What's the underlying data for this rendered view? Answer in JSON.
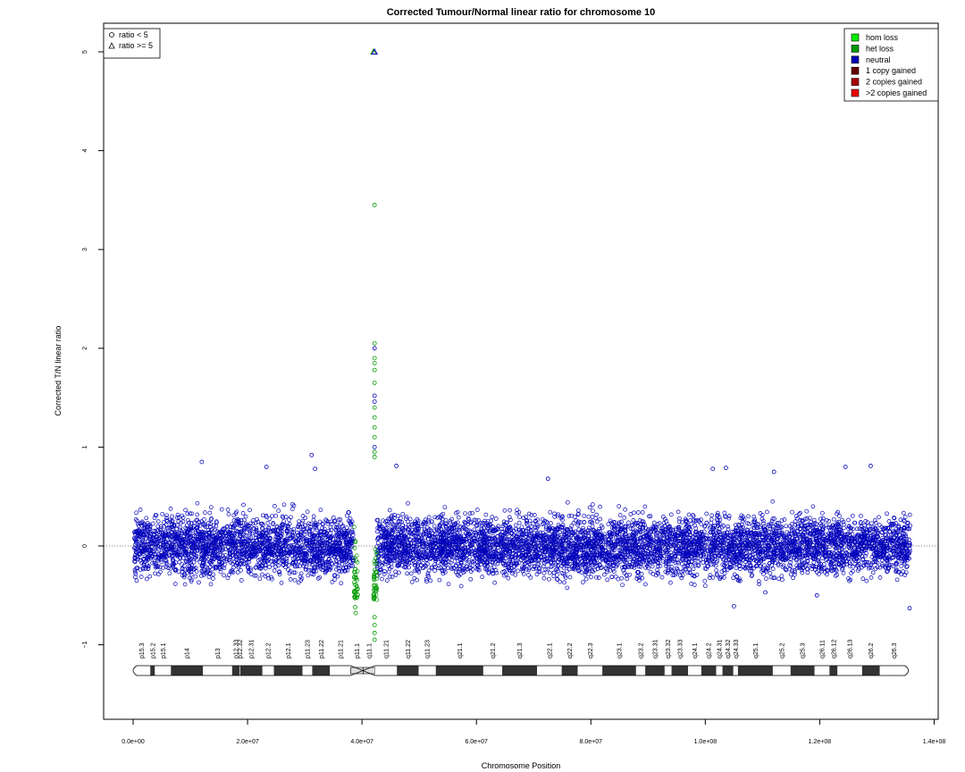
{
  "chart_data": {
    "type": "scatter",
    "title": "Corrected Tumour/Normal linear ratio for chromosome  10",
    "xlabel": "Chromosome Position",
    "ylabel": "Corrected T/N linear ratio",
    "xlim": [
      0,
      140000000
    ],
    "ylim": [
      -1.8,
      5.25
    ],
    "x_ticks": [
      0,
      20000000,
      40000000,
      60000000,
      80000000,
      100000000,
      120000000,
      140000000
    ],
    "x_tick_labels": [
      "0.0e+00",
      "2.0e+07",
      "4.0e+07",
      "6.0e+07",
      "8.0e+07",
      "1.0e+08",
      "1.2e+08",
      "1.4e+08"
    ],
    "y_ticks": [
      -1,
      0,
      1,
      2,
      3,
      4,
      5
    ],
    "y_tick_labels": [
      "−1",
      "0",
      "1",
      "2",
      "3",
      "4",
      "5"
    ],
    "reference_line_y": 0,
    "shape_legend": [
      {
        "label": "ratio < 5",
        "shape": "circle"
      },
      {
        "label": "ratio >= 5",
        "shape": "triangle"
      }
    ],
    "legend": [
      {
        "label": "hom loss",
        "color": "#00ee00"
      },
      {
        "label": "het loss",
        "color": "#009900"
      },
      {
        "label": "neutral",
        "color": "#0000bb"
      },
      {
        "label": "1 copy gained",
        "color": "#660000"
      },
      {
        "label": "2 copies gained",
        "color": "#aa0000"
      },
      {
        "label": ">2 copies gained",
        "color": "#ee0000"
      }
    ],
    "series": [
      {
        "name": "neutral",
        "color": "#0000bb",
        "segments": [
          [
            200000,
            38500000
          ],
          [
            42600000,
            135800000
          ]
        ],
        "center": 0,
        "spread": 0.35
      },
      {
        "name": "het loss",
        "color": "#009900",
        "segments": [
          [
            38600000,
            39300000
          ],
          [
            42000000,
            42600000
          ]
        ],
        "center": -0.3,
        "spread": 0.4
      }
    ],
    "outliers": [
      {
        "x": 12000000,
        "y": 0.85,
        "series": "neutral"
      },
      {
        "x": 23300000,
        "y": 0.8,
        "series": "neutral"
      },
      {
        "x": 31200000,
        "y": 0.92,
        "series": "neutral"
      },
      {
        "x": 31800000,
        "y": 0.78,
        "series": "neutral"
      },
      {
        "x": 46000000,
        "y": 0.81,
        "series": "neutral"
      },
      {
        "x": 72500000,
        "y": 0.68,
        "series": "neutral"
      },
      {
        "x": 101300000,
        "y": 0.78,
        "series": "neutral"
      },
      {
        "x": 103600000,
        "y": 0.79,
        "series": "neutral"
      },
      {
        "x": 112000000,
        "y": 0.75,
        "series": "neutral"
      },
      {
        "x": 124500000,
        "y": 0.8,
        "series": "neutral"
      },
      {
        "x": 128900000,
        "y": 0.81,
        "series": "neutral"
      },
      {
        "x": 105000000,
        "y": -0.61,
        "series": "neutral"
      },
      {
        "x": 110500000,
        "y": -0.47,
        "series": "neutral"
      },
      {
        "x": 119500000,
        "y": -0.5,
        "series": "neutral"
      },
      {
        "x": 135700000,
        "y": -0.63,
        "series": "neutral"
      },
      {
        "x": 42200000,
        "y": 3.45,
        "series": "het loss"
      },
      {
        "x": 42200000,
        "y": 2.05,
        "series": "het loss"
      },
      {
        "x": 42200000,
        "y": 2.0,
        "series": "neutral"
      },
      {
        "x": 42200000,
        "y": 1.9,
        "series": "het loss"
      },
      {
        "x": 42200000,
        "y": 1.85,
        "series": "het loss"
      },
      {
        "x": 42200000,
        "y": 1.78,
        "series": "het loss"
      },
      {
        "x": 42200000,
        "y": 1.65,
        "series": "het loss"
      },
      {
        "x": 42200000,
        "y": 1.52,
        "series": "neutral"
      },
      {
        "x": 42200000,
        "y": 1.46,
        "series": "neutral"
      },
      {
        "x": 42200000,
        "y": 1.4,
        "series": "het loss"
      },
      {
        "x": 42200000,
        "y": 1.3,
        "series": "het loss"
      },
      {
        "x": 42200000,
        "y": 1.2,
        "series": "het loss"
      },
      {
        "x": 42200000,
        "y": 1.1,
        "series": "het loss"
      },
      {
        "x": 42200000,
        "y": 1.0,
        "series": "neutral"
      },
      {
        "x": 42200000,
        "y": 0.95,
        "series": "het loss"
      },
      {
        "x": 42200000,
        "y": 0.9,
        "series": "het loss"
      },
      {
        "x": 42200000,
        "y": -0.72,
        "series": "het loss"
      },
      {
        "x": 42200000,
        "y": -0.8,
        "series": "het loss"
      },
      {
        "x": 42200000,
        "y": -0.88,
        "series": "het loss"
      },
      {
        "x": 42200000,
        "y": -0.95,
        "series": "het loss"
      },
      {
        "x": 38900000,
        "y": -0.68,
        "series": "het loss"
      },
      {
        "x": 38800000,
        "y": -0.62,
        "series": "het loss"
      }
    ],
    "saturated_points": [
      {
        "x": 42000000,
        "y": 5,
        "series": "het loss"
      },
      {
        "x": 42200000,
        "y": 5,
        "series": "neutral"
      }
    ],
    "ideogram": {
      "bands": [
        {
          "name": "p15.3",
          "start": 0,
          "end": 3000000,
          "stain": "gneg"
        },
        {
          "name": "p15.2",
          "start": 3000000,
          "end": 3800000,
          "stain": "gpos"
        },
        {
          "name": "p15.1",
          "start": 3800000,
          "end": 6600000,
          "stain": "gneg"
        },
        {
          "name": "p14",
          "start": 6600000,
          "end": 12200000,
          "stain": "gpos"
        },
        {
          "name": "p13",
          "start": 12200000,
          "end": 17300000,
          "stain": "gneg"
        },
        {
          "name": "p12.33",
          "start": 17300000,
          "end": 18600000,
          "stain": "gpos"
        },
        {
          "name": "p12.32",
          "start": 18600000,
          "end": 18700000,
          "stain": "gneg"
        },
        {
          "name": "p12.31",
          "start": 18700000,
          "end": 22600000,
          "stain": "gpos"
        },
        {
          "name": "p12.2",
          "start": 22600000,
          "end": 24600000,
          "stain": "gneg"
        },
        {
          "name": "p12.1",
          "start": 24600000,
          "end": 29600000,
          "stain": "gpos"
        },
        {
          "name": "p11.23",
          "start": 29600000,
          "end": 31300000,
          "stain": "gneg"
        },
        {
          "name": "p11.22",
          "start": 31300000,
          "end": 34400000,
          "stain": "gpos"
        },
        {
          "name": "p11.21",
          "start": 34400000,
          "end": 38000000,
          "stain": "gneg"
        },
        {
          "name": "p11.1",
          "start": 38000000,
          "end": 40200000,
          "stain": "acen"
        },
        {
          "name": "q11.1",
          "start": 40200000,
          "end": 42300000,
          "stain": "acen"
        },
        {
          "name": "q11.21",
          "start": 42300000,
          "end": 46100000,
          "stain": "gneg"
        },
        {
          "name": "q11.22",
          "start": 46100000,
          "end": 49900000,
          "stain": "gpos"
        },
        {
          "name": "q11.23",
          "start": 49900000,
          "end": 52900000,
          "stain": "gneg"
        },
        {
          "name": "q21.1",
          "start": 52900000,
          "end": 61200000,
          "stain": "gpos"
        },
        {
          "name": "q21.2",
          "start": 61200000,
          "end": 64500000,
          "stain": "gneg"
        },
        {
          "name": "q21.3",
          "start": 64500000,
          "end": 70600000,
          "stain": "gpos"
        },
        {
          "name": "q22.1",
          "start": 70600000,
          "end": 74900000,
          "stain": "gneg"
        },
        {
          "name": "q22.2",
          "start": 74900000,
          "end": 77700000,
          "stain": "gpos"
        },
        {
          "name": "q22.3",
          "start": 77700000,
          "end": 82000000,
          "stain": "gneg"
        },
        {
          "name": "q23.1",
          "start": 82000000,
          "end": 87900000,
          "stain": "gpos"
        },
        {
          "name": "q23.2",
          "start": 87900000,
          "end": 89500000,
          "stain": "gneg"
        },
        {
          "name": "q23.31",
          "start": 89500000,
          "end": 92900000,
          "stain": "gpos"
        },
        {
          "name": "q23.32",
          "start": 92900000,
          "end": 94100000,
          "stain": "gneg"
        },
        {
          "name": "q23.33",
          "start": 94100000,
          "end": 97000000,
          "stain": "gpos"
        },
        {
          "name": "q24.1",
          "start": 97000000,
          "end": 99300000,
          "stain": "gneg"
        },
        {
          "name": "q24.2",
          "start": 99300000,
          "end": 101900000,
          "stain": "gpos"
        },
        {
          "name": "q24.31",
          "start": 101900000,
          "end": 103000000,
          "stain": "gneg"
        },
        {
          "name": "q24.32",
          "start": 103000000,
          "end": 104900000,
          "stain": "gpos"
        },
        {
          "name": "q24.33",
          "start": 104900000,
          "end": 105700000,
          "stain": "gneg"
        },
        {
          "name": "q25.1",
          "start": 105700000,
          "end": 111800000,
          "stain": "gpos"
        },
        {
          "name": "q25.2",
          "start": 111800000,
          "end": 114900000,
          "stain": "gneg"
        },
        {
          "name": "q25.3",
          "start": 114900000,
          "end": 119100000,
          "stain": "gpos"
        },
        {
          "name": "q26.11",
          "start": 119100000,
          "end": 121700000,
          "stain": "gneg"
        },
        {
          "name": "q26.12",
          "start": 121700000,
          "end": 123100000,
          "stain": "gpos"
        },
        {
          "name": "q26.13",
          "start": 123100000,
          "end": 127400000,
          "stain": "gneg"
        },
        {
          "name": "q26.2",
          "start": 127400000,
          "end": 130500000,
          "stain": "gpos"
        },
        {
          "name": "q26.3",
          "start": 130500000,
          "end": 135500000,
          "stain": "gneg"
        }
      ]
    },
    "grid": false
  }
}
